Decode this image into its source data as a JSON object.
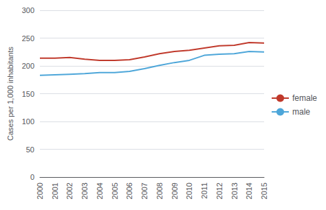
{
  "chart_data": {
    "type": "line",
    "categories": [
      "2000",
      "2001",
      "2002",
      "2003",
      "2004",
      "2005",
      "2006",
      "2007",
      "2008",
      "2009",
      "2010",
      "2011",
      "2012",
      "2013",
      "2014",
      "2015"
    ],
    "series": [
      {
        "name": "female",
        "color": "#c0392b",
        "values": [
          214,
          214,
          215,
          212,
          210,
          210,
          211,
          216,
          222,
          226,
          228,
          232,
          236,
          237,
          242,
          241
        ]
      },
      {
        "name": "male",
        "color": "#4da6d9",
        "values": [
          183,
          184,
          185,
          186,
          188,
          188,
          190,
          195,
          201,
          206,
          210,
          219,
          221,
          222,
          226,
          225
        ]
      }
    ],
    "ylabel": "Cases per 1,000 inhabitants",
    "ylim": [
      0,
      300
    ],
    "yticks": [
      0,
      50,
      100,
      150,
      200,
      250,
      300
    ],
    "grid": true,
    "legend": "right"
  }
}
